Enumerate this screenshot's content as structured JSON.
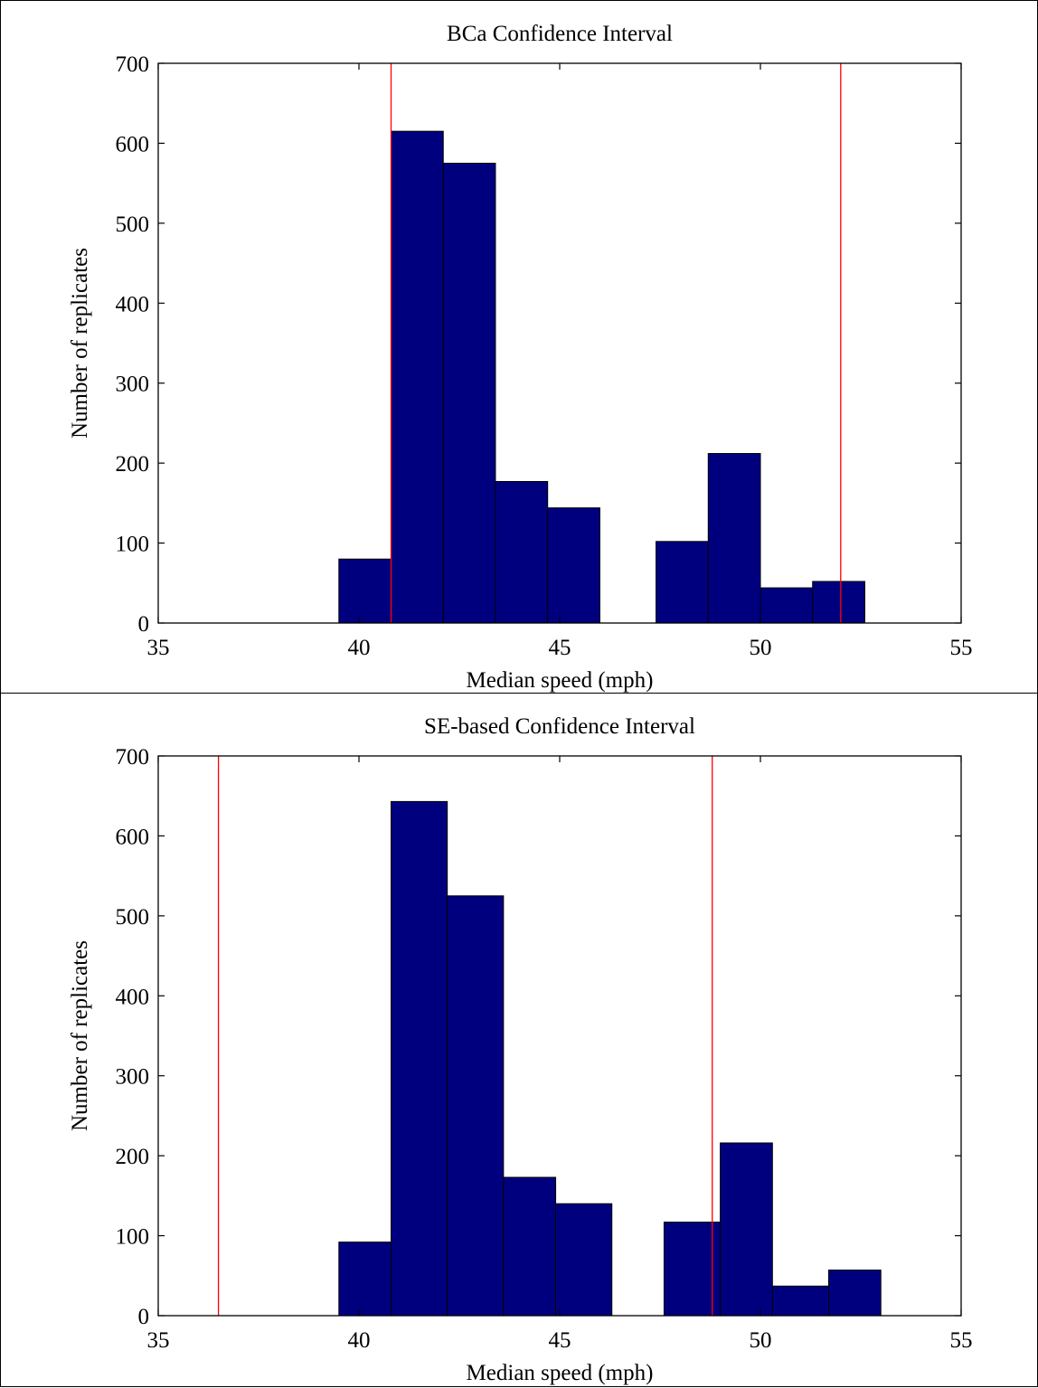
{
  "colors": {
    "bar": "#00007f",
    "ci_line": "#ff0000",
    "axis": "#000000"
  },
  "chart_data": [
    {
      "type": "bar",
      "title": "BCa Confidence Interval",
      "xlabel": "Median speed (mph)",
      "ylabel": "Number of replicates",
      "xlim": [
        35,
        55
      ],
      "ylim": [
        0,
        700
      ],
      "xticks": [
        35,
        40,
        45,
        50,
        55
      ],
      "yticks": [
        0,
        100,
        200,
        300,
        400,
        500,
        600,
        700
      ],
      "grid": false,
      "bins": [
        {
          "x0": 39.5,
          "x1": 40.8,
          "count": 80
        },
        {
          "x0": 40.8,
          "x1": 42.1,
          "count": 615
        },
        {
          "x0": 42.1,
          "x1": 43.4,
          "count": 575
        },
        {
          "x0": 43.4,
          "x1": 44.7,
          "count": 177
        },
        {
          "x0": 44.7,
          "x1": 46.0,
          "count": 144
        },
        {
          "x0": 46.0,
          "x1": 47.4,
          "count": 0
        },
        {
          "x0": 47.4,
          "x1": 48.7,
          "count": 102
        },
        {
          "x0": 48.7,
          "x1": 50.0,
          "count": 212
        },
        {
          "x0": 50.0,
          "x1": 51.3,
          "count": 44
        },
        {
          "x0": 51.3,
          "x1": 52.6,
          "count": 52
        }
      ],
      "ci_lines": [
        40.8,
        52.0
      ]
    },
    {
      "type": "bar",
      "title": "SE-based Confidence Interval",
      "xlabel": "Median speed (mph)",
      "ylabel": "Number of replicates",
      "xlim": [
        35,
        55
      ],
      "ylim": [
        0,
        700
      ],
      "xticks": [
        35,
        40,
        45,
        50,
        55
      ],
      "yticks": [
        0,
        100,
        200,
        300,
        400,
        500,
        600,
        700
      ],
      "grid": false,
      "bins": [
        {
          "x0": 39.5,
          "x1": 40.8,
          "count": 92
        },
        {
          "x0": 40.8,
          "x1": 42.2,
          "count": 643
        },
        {
          "x0": 42.2,
          "x1": 43.6,
          "count": 525
        },
        {
          "x0": 43.6,
          "x1": 44.9,
          "count": 173
        },
        {
          "x0": 44.9,
          "x1": 46.3,
          "count": 140
        },
        {
          "x0": 46.3,
          "x1": 47.6,
          "count": 0
        },
        {
          "x0": 47.6,
          "x1": 49.0,
          "count": 117
        },
        {
          "x0": 49.0,
          "x1": 50.3,
          "count": 216
        },
        {
          "x0": 50.3,
          "x1": 51.7,
          "count": 37
        },
        {
          "x0": 51.7,
          "x1": 53.0,
          "count": 57
        }
      ],
      "ci_lines": [
        36.5,
        48.8
      ]
    }
  ]
}
